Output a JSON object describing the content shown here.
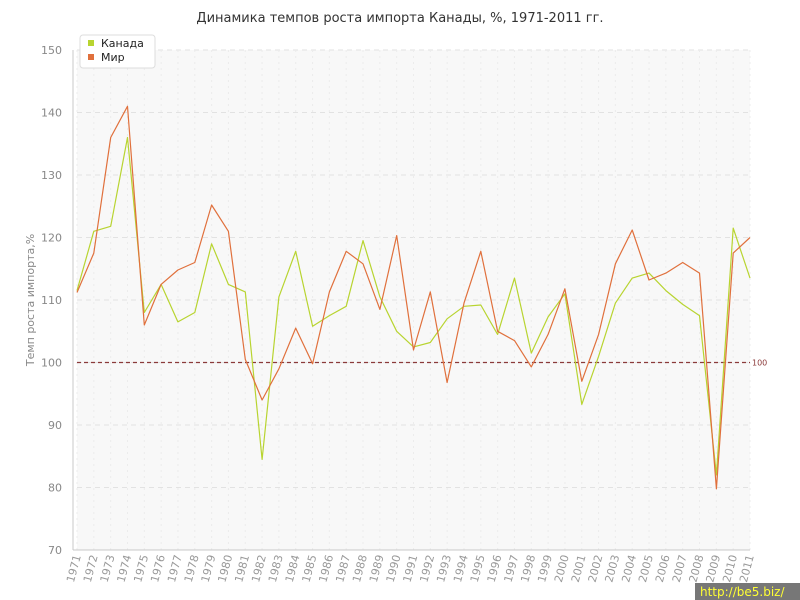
{
  "chart_data": {
    "type": "line",
    "title": "Динамика темпов роста импорта Канады, %, 1971-2011 гг.",
    "ylabel": "Темп роста импорта,%",
    "xlabel": "",
    "ylim": [
      70,
      150
    ],
    "yticks": [
      70,
      80,
      90,
      100,
      110,
      120,
      130,
      140,
      150
    ],
    "grid": true,
    "legend_position": "top-left",
    "x": [
      1971,
      1972,
      1973,
      1974,
      1975,
      1976,
      1977,
      1978,
      1979,
      1980,
      1981,
      1982,
      1983,
      1984,
      1985,
      1986,
      1987,
      1988,
      1989,
      1990,
      1991,
      1992,
      1993,
      1994,
      1995,
      1996,
      1997,
      1998,
      1999,
      2000,
      2001,
      2002,
      2003,
      2004,
      2005,
      2006,
      2007,
      2008,
      2009,
      2010,
      2011
    ],
    "series": [
      {
        "name": "Канада",
        "color": "#b8d430",
        "values": [
          111.5,
          121,
          121.8,
          136,
          108,
          112.5,
          106.5,
          108,
          119,
          112.5,
          111.3,
          84.5,
          110.5,
          117.8,
          105.8,
          107.5,
          109,
          119.5,
          110.5,
          105,
          102.5,
          103.2,
          107,
          109,
          109.2,
          104.5,
          113.5,
          101.5,
          107.3,
          111,
          93.3,
          101,
          109.5,
          113.5,
          114.3,
          111.5,
          109.3,
          107.5,
          82,
          121.5,
          113.5
        ]
      },
      {
        "name": "Мир",
        "color": "#e0703c",
        "values": [
          111.2,
          117.5,
          136,
          141,
          106,
          112.5,
          114.8,
          116,
          125.2,
          121,
          100.5,
          94,
          99,
          105.5,
          99.8,
          111.3,
          117.8,
          115.8,
          108.5,
          120.3,
          102,
          111.3,
          96.8,
          109.5,
          117.8,
          105,
          103.5,
          99.3,
          104.5,
          111.8,
          97,
          104.5,
          115.8,
          121.2,
          113.2,
          114.3,
          116,
          114.3,
          79.8,
          117.5,
          120
        ]
      }
    ],
    "reference_line": {
      "value": 100,
      "label": "100",
      "color": "#8b3a3a",
      "style": "dashed"
    }
  },
  "watermark": {
    "text": "http://be5.biz/"
  }
}
